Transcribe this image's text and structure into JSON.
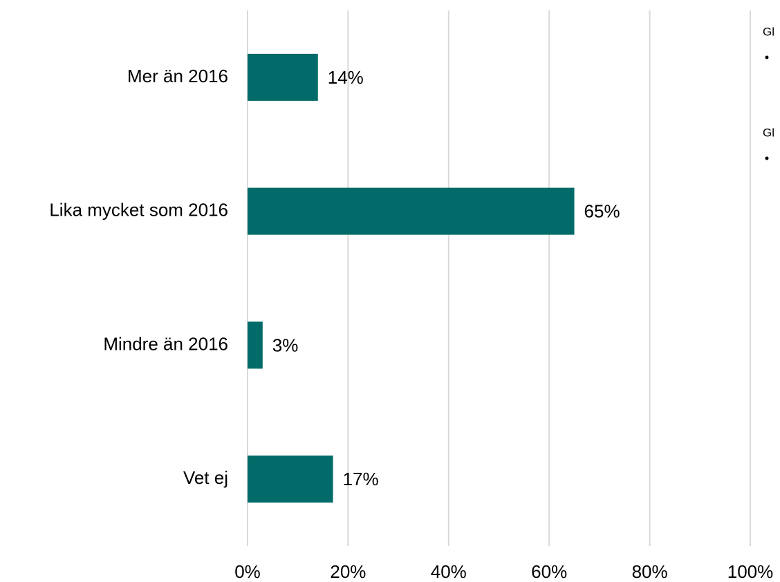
{
  "chart_data": {
    "type": "bar",
    "orientation": "horizontal",
    "categories": [
      "Mer än 2016",
      "Lika mycket som 2016",
      "Mindre än 2016",
      "Vet ej"
    ],
    "values": [
      14,
      65,
      3,
      17
    ],
    "value_labels": [
      "14%",
      "65%",
      "3%",
      "17%"
    ],
    "color": "#006b68",
    "xlim": [
      0,
      100
    ],
    "xticks": [
      {
        "value": 0,
        "label": "0%"
      },
      {
        "value": 20,
        "label": "20%"
      },
      {
        "value": 40,
        "label": "40%"
      },
      {
        "value": 60,
        "label": "60%"
      },
      {
        "value": 80,
        "label": "80%"
      },
      {
        "value": 100,
        "label": "100%"
      }
    ],
    "grid": true,
    "annotations": [
      "Gl",
      "Gl"
    ]
  }
}
